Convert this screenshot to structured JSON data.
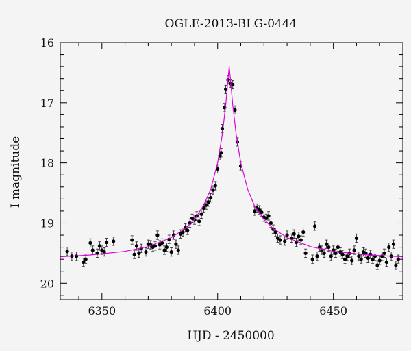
{
  "chart_data": {
    "type": "scatter",
    "title": "OGLE-2013-BLG-0444",
    "xlabel": "HJD - 2450000",
    "ylabel": "I magnitude",
    "xlim": [
      6332,
      6480
    ],
    "ylim": [
      20.27,
      16.0
    ],
    "y_inverted": true,
    "grid": false,
    "xticks": [
      6350,
      6400,
      6450
    ],
    "yticks": [
      16,
      17,
      18,
      19,
      20
    ],
    "colors": {
      "points": "#000000",
      "model": "#dd00dd",
      "background": "#f4f4f4"
    },
    "model": {
      "type": "line",
      "peak_hjd": 6405.0,
      "peak_mag": 16.4,
      "baseline_mag": 19.58,
      "tE_days": 22,
      "x": [
        6332,
        6345,
        6360,
        6370,
        6380,
        6386,
        6390,
        6394,
        6397,
        6400,
        6402,
        6403.5,
        6404.5,
        6405,
        6405.5,
        6406.5,
        6408,
        6410,
        6413,
        6416,
        6420,
        6424,
        6430,
        6440,
        6450,
        6465,
        6480
      ],
      "y": [
        19.56,
        19.53,
        19.47,
        19.39,
        19.24,
        19.09,
        18.94,
        18.7,
        18.44,
        18.0,
        17.53,
        17.03,
        16.6,
        16.4,
        16.6,
        17.03,
        17.53,
        18.0,
        18.44,
        18.72,
        18.94,
        19.09,
        19.24,
        19.39,
        19.47,
        19.53,
        19.56
      ]
    },
    "series": [
      {
        "x": [
          6335,
          6337,
          6339,
          6342,
          6343,
          6345,
          6346,
          6348,
          6349,
          6350,
          6351,
          6352,
          6355,
          6363,
          6364,
          6365,
          6366,
          6367,
          6369,
          6370,
          6371,
          6372,
          6373,
          6374,
          6375,
          6376,
          6377,
          6378,
          6379,
          6380,
          6381,
          6382,
          6383,
          6384,
          6385,
          6386,
          6387,
          6388,
          6389,
          6390,
          6391,
          6392,
          6393,
          6394,
          6395,
          6396,
          6397,
          6398,
          6399,
          6400,
          6401,
          6401.5,
          6402,
          6403,
          6403.5,
          6404.5,
          6405.5,
          6406.5,
          6407.5,
          6408.5,
          6410,
          6416,
          6417,
          6418,
          6419,
          6420,
          6421,
          6422,
          6423,
          6424,
          6425,
          6426,
          6427,
          6429,
          6430,
          6432,
          6433,
          6434,
          6435,
          6436,
          6437,
          6438,
          6441,
          6442,
          6443,
          6444,
          6445,
          6446,
          6447,
          6448,
          6449,
          6450,
          6451,
          6452,
          6453,
          6454,
          6455,
          6456,
          6457,
          6458,
          6459,
          6460,
          6461,
          6462,
          6463,
          6464,
          6465,
          6466,
          6467,
          6468,
          6469,
          6470,
          6471,
          6472,
          6473,
          6474,
          6475,
          6476,
          6477,
          6478
        ],
        "y": [
          19.47,
          19.55,
          19.55,
          19.65,
          19.6,
          19.33,
          19.45,
          19.5,
          19.38,
          19.45,
          19.48,
          19.32,
          19.3,
          19.28,
          19.52,
          19.38,
          19.5,
          19.42,
          19.48,
          19.35,
          19.36,
          19.4,
          19.38,
          19.2,
          19.36,
          19.33,
          19.45,
          19.4,
          19.27,
          19.48,
          19.2,
          19.35,
          19.45,
          19.18,
          19.15,
          19.08,
          19.12,
          19.0,
          18.92,
          18.95,
          18.88,
          18.97,
          18.85,
          18.75,
          18.7,
          18.65,
          18.58,
          18.45,
          18.38,
          18.1,
          17.88,
          17.83,
          17.43,
          17.08,
          16.78,
          16.62,
          16.68,
          16.7,
          17.12,
          17.65,
          18.05,
          18.8,
          18.75,
          18.78,
          18.82,
          18.9,
          18.92,
          18.88,
          19.0,
          19.1,
          19.15,
          19.25,
          19.28,
          19.3,
          19.2,
          19.25,
          19.18,
          19.32,
          19.22,
          19.28,
          19.15,
          19.5,
          19.6,
          19.05,
          19.55,
          19.4,
          19.45,
          19.5,
          19.35,
          19.4,
          19.55,
          19.45,
          19.5,
          19.4,
          19.48,
          19.52,
          19.6,
          19.55,
          19.5,
          19.62,
          19.45,
          19.25,
          19.55,
          19.6,
          19.48,
          19.5,
          19.58,
          19.52,
          19.6,
          19.55,
          19.7,
          19.62,
          19.55,
          19.5,
          19.65,
          19.4,
          19.55,
          19.35,
          19.7,
          19.6
        ],
        "y_err": 0.07
      }
    ]
  }
}
